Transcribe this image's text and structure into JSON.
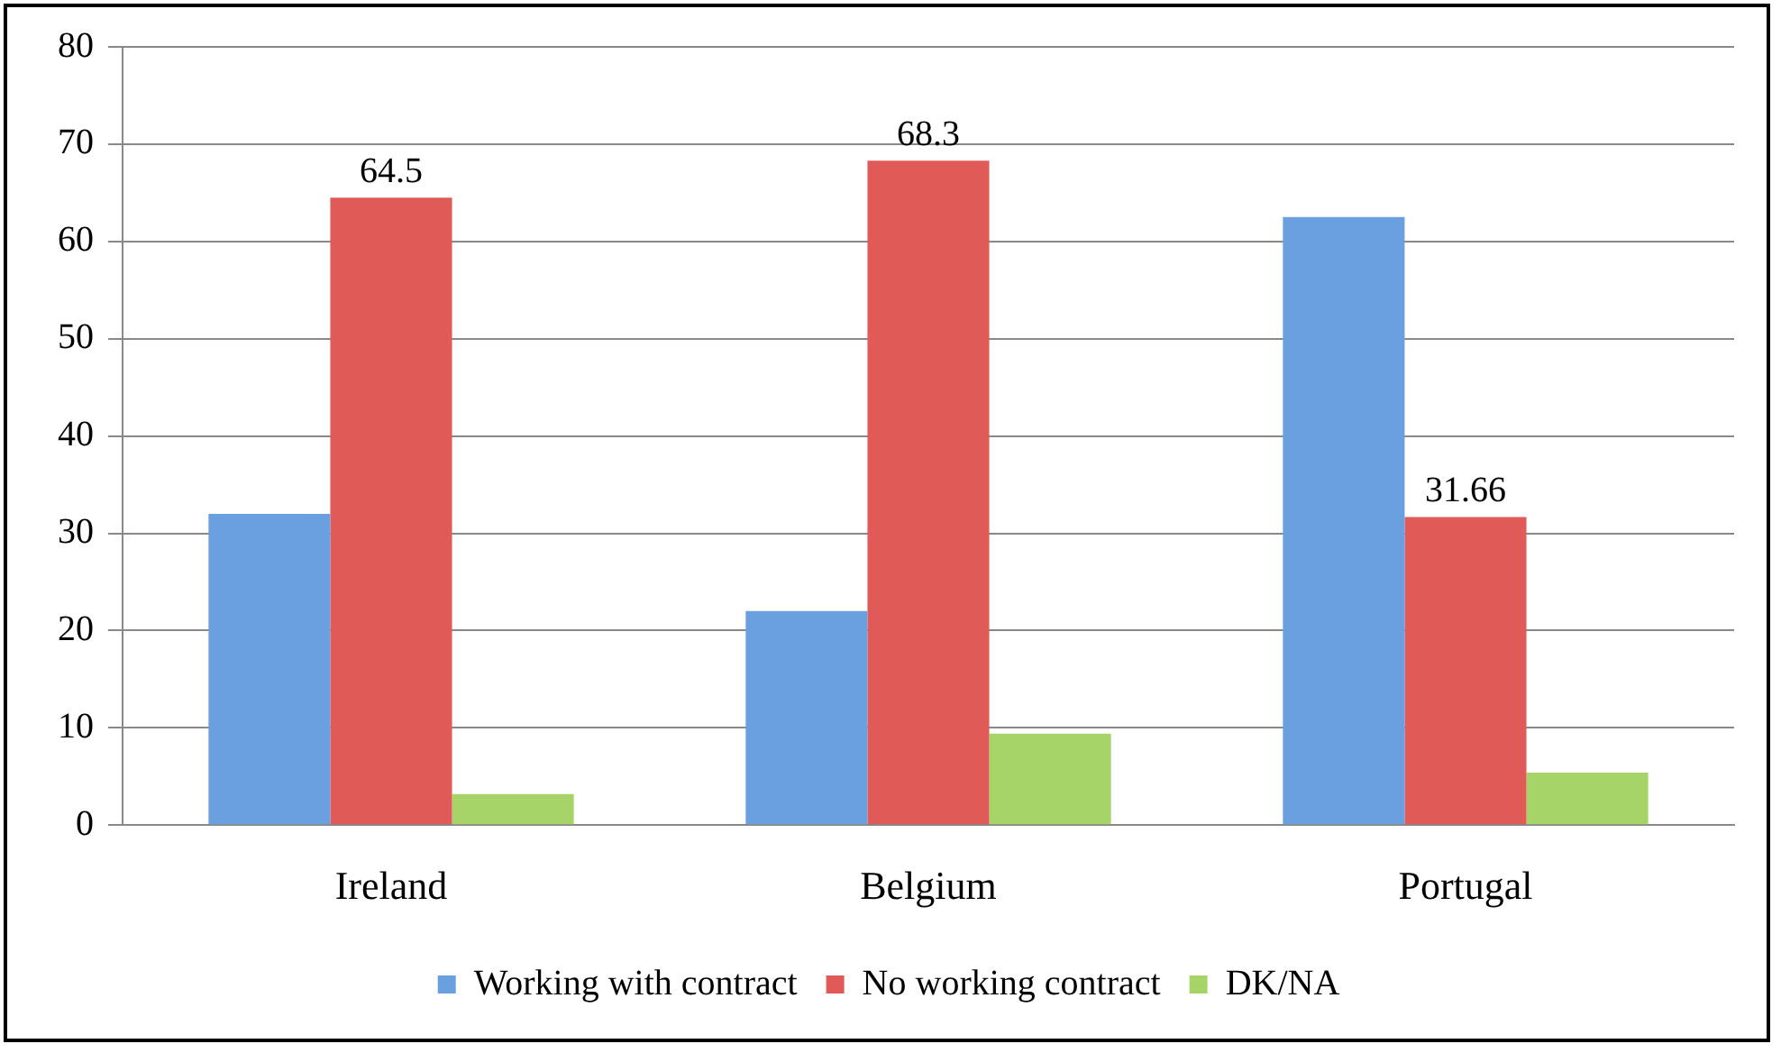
{
  "chart_data": {
    "type": "bar",
    "categories": [
      "Ireland",
      "Belgium",
      "Portugal"
    ],
    "series": [
      {
        "name": "Working with contract",
        "color": "#6a9fe0",
        "values": [
          32,
          22,
          62.5
        ]
      },
      {
        "name": "No working contract",
        "color": "#e05a58",
        "values": [
          64.5,
          68.3,
          31.66
        ],
        "value_labels": [
          "64.5",
          "68.3",
          "31.66"
        ]
      },
      {
        "name": "DK/NA",
        "color": "#a6d468",
        "values": [
          3.2,
          9.4,
          5.4
        ]
      }
    ],
    "ylim": [
      0,
      80
    ],
    "yticks": [
      0,
      10,
      20,
      30,
      40,
      50,
      60,
      70,
      80
    ],
    "grid": "y",
    "legend": "bottom"
  }
}
